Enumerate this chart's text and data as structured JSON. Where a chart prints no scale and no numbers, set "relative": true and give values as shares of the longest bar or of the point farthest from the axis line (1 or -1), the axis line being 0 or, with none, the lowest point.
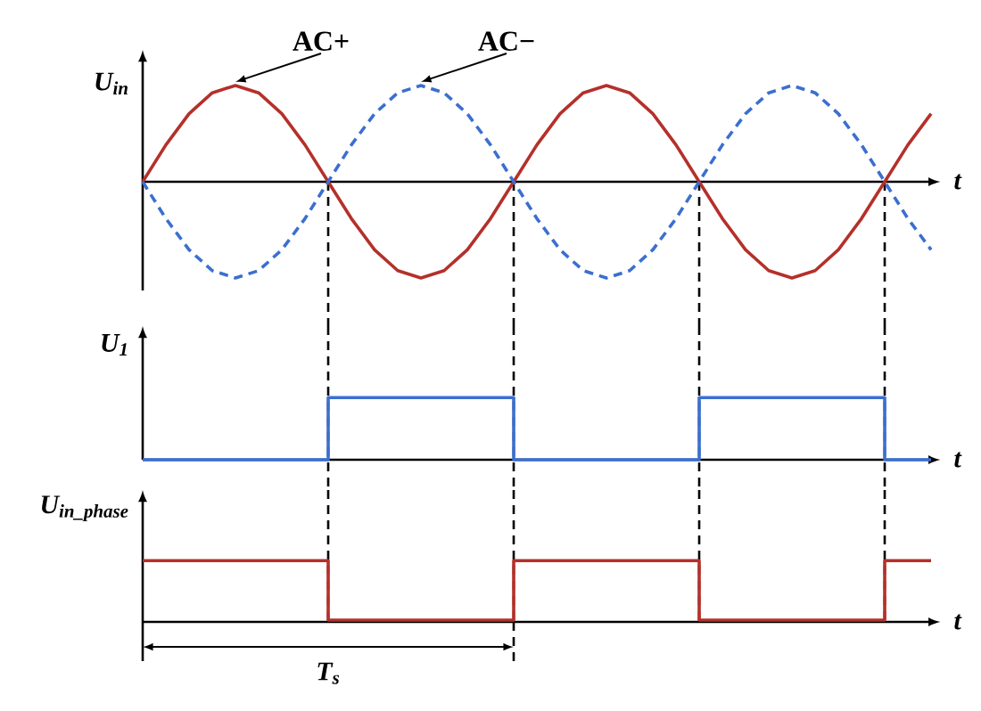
{
  "chart_data": [
    {
      "type": "line",
      "relative": true,
      "grid": "x",
      "xlabel": "t",
      "ylabel": "U$_{in}$",
      "categories": [
        null,
        null,
        null,
        null,
        null,
        null,
        null,
        null,
        null,
        null,
        null,
        null,
        null,
        null,
        null,
        null,
        null,
        null,
        null,
        null,
        null,
        null,
        null,
        null,
        null,
        null,
        null,
        null,
        null,
        null,
        null,
        null,
        null,
        null,
        null
      ],
      "series": [
        {
          "name": "AC+",
          "color": "#b5302a",
          "line_style": "solid",
          "values": [
            0,
            0.383,
            0.707,
            0.924,
            1,
            0.924,
            0.707,
            0.383,
            0,
            -0.383,
            -0.707,
            -0.924,
            -1,
            -0.924,
            -0.707,
            -0.383,
            0,
            0.383,
            0.707,
            0.924,
            1,
            0.924,
            0.707,
            0.383,
            0,
            -0.383,
            -0.707,
            -0.924,
            -1,
            -0.924,
            -0.707,
            -0.383,
            0,
            0.383,
            0.707
          ]
        },
        {
          "name": "AC−",
          "color": "#3b6fd0",
          "line_style": "dashed",
          "values": [
            0,
            -0.383,
            -0.707,
            -0.924,
            -1,
            -0.924,
            -0.707,
            -0.383,
            0,
            0.383,
            0.707,
            0.924,
            1,
            0.924,
            0.707,
            0.383,
            0,
            -0.383,
            -0.707,
            -0.924,
            -1,
            -0.924,
            -0.707,
            -0.383,
            0,
            0.383,
            0.707,
            0.924,
            1,
            0.924,
            0.707,
            0.383,
            0,
            -0.383,
            -0.707
          ]
        }
      ]
    },
    {
      "type": "step",
      "relative": true,
      "grid": "x",
      "xlabel": "t",
      "ylabel": "U$_{1}$",
      "categories": [
        null,
        null,
        null,
        null,
        null,
        null,
        null,
        null,
        null,
        null,
        null,
        null,
        null,
        null,
        null,
        null,
        null,
        null,
        null,
        null,
        null,
        null,
        null,
        null,
        null,
        null,
        null,
        null,
        null,
        null,
        null,
        null,
        null,
        null,
        null
      ],
      "series": [
        {
          "color": "#3b6fd0",
          "line_style": "solid",
          "values": [
            0,
            0,
            0,
            0,
            0,
            0,
            0,
            0,
            1,
            1,
            1,
            1,
            1,
            1,
            1,
            1,
            0,
            0,
            0,
            0,
            0,
            0,
            0,
            0,
            1,
            1,
            1,
            1,
            1,
            1,
            1,
            1,
            0,
            0,
            0
          ]
        }
      ]
    },
    {
      "type": "step",
      "relative": true,
      "grid": "x",
      "xlabel": "t",
      "ylabel": "U$_{in_phase}$",
      "categories": [
        null,
        null,
        null,
        null,
        null,
        null,
        null,
        null,
        null,
        null,
        null,
        null,
        null,
        null,
        null,
        null,
        null,
        null,
        null,
        null,
        null,
        null,
        null,
        null,
        null,
        null,
        null,
        null,
        null,
        null,
        null,
        null,
        null,
        null,
        null
      ],
      "series": [
        {
          "color": "#b5302a",
          "line_style": "solid",
          "values": [
            1,
            1,
            1,
            1,
            1,
            1,
            1,
            1,
            0.03,
            0.03,
            0.03,
            0.03,
            0.03,
            0.03,
            0.03,
            0.03,
            1,
            1,
            1,
            1,
            1,
            1,
            1,
            1,
            0.03,
            0.03,
            0.03,
            0.03,
            0.03,
            0.03,
            0.03,
            0.03,
            1,
            1,
            1
          ]
        }
      ],
      "annotations": [
        "T$_{s}$"
      ]
    }
  ]
}
